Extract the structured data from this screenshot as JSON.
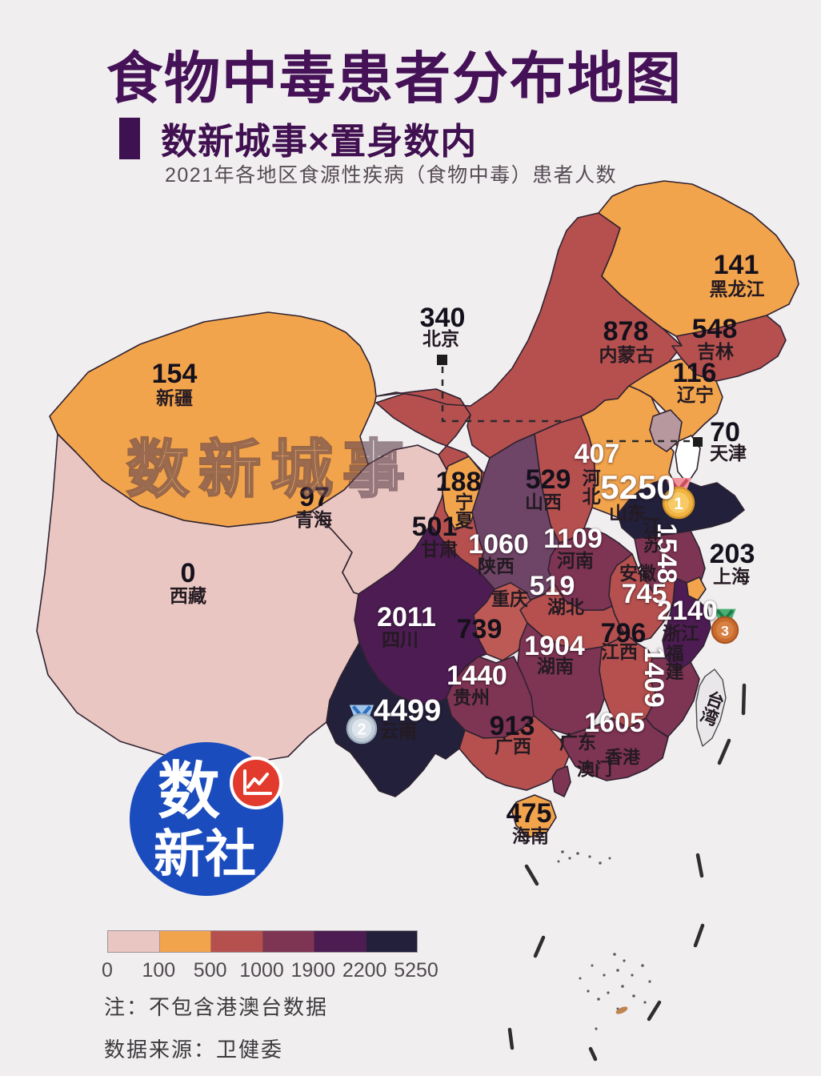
{
  "page": {
    "background": "#f1eef0"
  },
  "header": {
    "title": "食物中毒患者分布地图",
    "title_color": "#451157",
    "subtitle": "数新城事×置身数内",
    "description": "2021年各地区食源性疾病（食物中毒）患者人数"
  },
  "watermark": "数新城事",
  "map": {
    "border_color": "#2f2230",
    "provinces": [
      {
        "id": "xinjiang",
        "name": "新疆",
        "value": "154",
        "fill": "#f2a44c",
        "num_color": "#15111c"
      },
      {
        "id": "xizang",
        "name": "西藏",
        "value": "0",
        "fill": "#e9c6c1",
        "num_color": "#15111c"
      },
      {
        "id": "qinghai",
        "name": "青海",
        "value": "97",
        "fill": "#e9c6c1",
        "num_color": "#15111c"
      },
      {
        "id": "gansu",
        "name": "甘肃",
        "value": "501",
        "fill": "#b5504f",
        "num_color": "#15111c"
      },
      {
        "id": "ningxia",
        "name": "宁夏",
        "value": "188",
        "fill": "#f2a44c",
        "num_color": "#15111c"
      },
      {
        "id": "neimenggu",
        "name": "内蒙古",
        "value": "878",
        "fill": "#b5504f",
        "num_color": "#15111c"
      },
      {
        "id": "heilongjiang",
        "name": "黑龙江",
        "value": "141",
        "fill": "#f2a44c",
        "num_color": "#15111c"
      },
      {
        "id": "jilin",
        "name": "吉林",
        "value": "548",
        "fill": "#b5504f",
        "num_color": "#15111c"
      },
      {
        "id": "liaoning",
        "name": "辽宁",
        "value": "116",
        "fill": "#f2a44c",
        "num_color": "#15111c"
      },
      {
        "id": "beijing",
        "name": "北京",
        "value": "340",
        "fill": "#b7989f",
        "num_color": "#15111c"
      },
      {
        "id": "tianjin",
        "name": "天津",
        "value": "70",
        "fill": "#ffffff",
        "num_color": "#15111c"
      },
      {
        "id": "hebei",
        "name": "河北",
        "value": "407",
        "fill": "#f2a44c",
        "num_color": "#ffffff"
      },
      {
        "id": "shanxi",
        "name": "山西",
        "value": "529",
        "fill": "#b5504f",
        "num_color": "#15111c"
      },
      {
        "id": "shandong",
        "name": "山东",
        "value": "5250",
        "fill": "#22203a",
        "num_color": "#ffffff"
      },
      {
        "id": "henan",
        "name": "河南",
        "value": "1109",
        "fill": "#7e3453",
        "num_color": "#ffffff"
      },
      {
        "id": "jiangsu",
        "name": "江苏",
        "value": "1548",
        "fill": "#7e3453",
        "num_color": "#ffffff"
      },
      {
        "id": "shanghai",
        "name": "上海",
        "value": "203",
        "fill": "#f2a44c",
        "num_color": "#15111c"
      },
      {
        "id": "anhui",
        "name": "安徽",
        "value": "745",
        "fill": "#b5504f",
        "num_color": "#ffffff"
      },
      {
        "id": "zhejiang",
        "name": "浙江",
        "value": "2140",
        "fill": "#4c1c53",
        "num_color": "#ffffff"
      },
      {
        "id": "hubei",
        "name": "湖北",
        "value": "519",
        "fill": "#b5504f",
        "num_color": "#ffffff"
      },
      {
        "id": "chongqing",
        "name": "重庆",
        "value": "739",
        "fill": "#bd5a55",
        "num_color": "#15111c"
      },
      {
        "id": "sichuan",
        "name": "四川",
        "value": "2011",
        "fill": "#4c1c53",
        "num_color": "#ffffff"
      },
      {
        "id": "shaanxi",
        "name": "陕西",
        "value": "1060",
        "fill": "#6e4566",
        "num_color": "#ffffff"
      },
      {
        "id": "hunan",
        "name": "湖南",
        "value": "1904",
        "fill": "#7e3453",
        "num_color": "#ffffff"
      },
      {
        "id": "jiangxi",
        "name": "江西",
        "value": "796",
        "fill": "#b5504f",
        "num_color": "#15111c"
      },
      {
        "id": "fujian",
        "name": "福建",
        "value": "1409",
        "fill": "#7e3453",
        "num_color": "#ffffff"
      },
      {
        "id": "guizhou",
        "name": "贵州",
        "value": "1440",
        "fill": "#7e3453",
        "num_color": "#ffffff"
      },
      {
        "id": "yunnan",
        "name": "云南",
        "value": "4499",
        "fill": "#22203a",
        "num_color": "#ffffff"
      },
      {
        "id": "guangxi",
        "name": "广西",
        "value": "913",
        "fill": "#b5504f",
        "num_color": "#15111c"
      },
      {
        "id": "guangdong",
        "name": "广东",
        "value": "1605",
        "fill": "#7e3453",
        "num_color": "#ffffff"
      },
      {
        "id": "hainan",
        "name": "海南",
        "value": "475",
        "fill": "#f2a44c",
        "num_color": "#15111c"
      }
    ],
    "territories": [
      {
        "id": "taiwan",
        "name": "台湾",
        "fill": "#e9e7ea"
      },
      {
        "id": "hongkong",
        "name": "香港"
      },
      {
        "id": "macau",
        "name": "澳门"
      }
    ],
    "medals": [
      {
        "rank": "1",
        "province": "shandong",
        "circle": "#f2b544",
        "rim": "#d3952b",
        "inner": "#f7ca67",
        "ribbon": "#f2949e",
        "ribbon_dark": "#cc4f5e"
      },
      {
        "rank": "2",
        "province": "yunnan",
        "circle": "#c3cdd8",
        "rim": "#9aabbc",
        "inner": "#dde4ec",
        "ribbon": "#9fc4ea",
        "ribbon_dark": "#2e6fc0"
      },
      {
        "rank": "3",
        "province": "zhejiang",
        "circle": "#c96a2e",
        "rim": "#a8541f",
        "inner": "#d87f42",
        "ribbon": "#49b072",
        "ribbon_dark": "#1e7a48"
      }
    ]
  },
  "legend": {
    "colors": [
      "#e9c6c1",
      "#f2a44c",
      "#b5504f",
      "#7e3453",
      "#4c1c53",
      "#22203a"
    ],
    "breaks": [
      "0",
      "100",
      "500",
      "1000",
      "1900",
      "2200",
      "5250"
    ]
  },
  "notes": {
    "note1": "注：不包含港澳台数据",
    "note2": "数据来源：卫健委"
  },
  "logo": {
    "line1": "数",
    "line2": "新社",
    "bg": "#1b4cbe",
    "accent": "#e23a2c"
  },
  "chart_data": {
    "type": "choropleth_map",
    "title": "食物中毒患者分布地图",
    "subtitle": "2021年各地区食源性疾病（食物中毒）患者人数",
    "unit": "患者人数（人）",
    "legend_breaks": [
      0,
      100,
      500,
      1000,
      1900,
      2200,
      5250
    ],
    "legend_colors": [
      "#e9c6c1",
      "#f2a44c",
      "#b5504f",
      "#7e3453",
      "#4c1c53",
      "#22203a"
    ],
    "top3": [
      {
        "rank": 1,
        "name": "山东",
        "value": 5250
      },
      {
        "rank": 2,
        "name": "云南",
        "value": 4499
      },
      {
        "rank": 3,
        "name": "浙江",
        "value": 2140
      }
    ],
    "regions": [
      {
        "name": "新疆",
        "value": 154
      },
      {
        "name": "西藏",
        "value": 0
      },
      {
        "name": "青海",
        "value": 97
      },
      {
        "name": "甘肃",
        "value": 501
      },
      {
        "name": "宁夏",
        "value": 188
      },
      {
        "name": "内蒙古",
        "value": 878
      },
      {
        "name": "黑龙江",
        "value": 141
      },
      {
        "name": "吉林",
        "value": 548
      },
      {
        "name": "辽宁",
        "value": 116
      },
      {
        "name": "北京",
        "value": 340
      },
      {
        "name": "天津",
        "value": 70
      },
      {
        "name": "河北",
        "value": 407
      },
      {
        "name": "山西",
        "value": 529
      },
      {
        "name": "山东",
        "value": 5250
      },
      {
        "name": "河南",
        "value": 1109
      },
      {
        "name": "江苏",
        "value": 1548
      },
      {
        "name": "上海",
        "value": 203
      },
      {
        "name": "安徽",
        "value": 745
      },
      {
        "name": "浙江",
        "value": 2140
      },
      {
        "name": "湖北",
        "value": 519
      },
      {
        "name": "重庆",
        "value": 739
      },
      {
        "name": "四川",
        "value": 2011
      },
      {
        "name": "陕西",
        "value": 1060
      },
      {
        "name": "湖南",
        "value": 1904
      },
      {
        "name": "江西",
        "value": 796
      },
      {
        "name": "福建",
        "value": 1409
      },
      {
        "name": "贵州",
        "value": 1440
      },
      {
        "name": "云南",
        "value": 4499
      },
      {
        "name": "广西",
        "value": 913
      },
      {
        "name": "广东",
        "value": 1605
      },
      {
        "name": "海南",
        "value": 475
      }
    ],
    "excluded_regions": [
      "香港",
      "澳门",
      "台湾"
    ]
  }
}
